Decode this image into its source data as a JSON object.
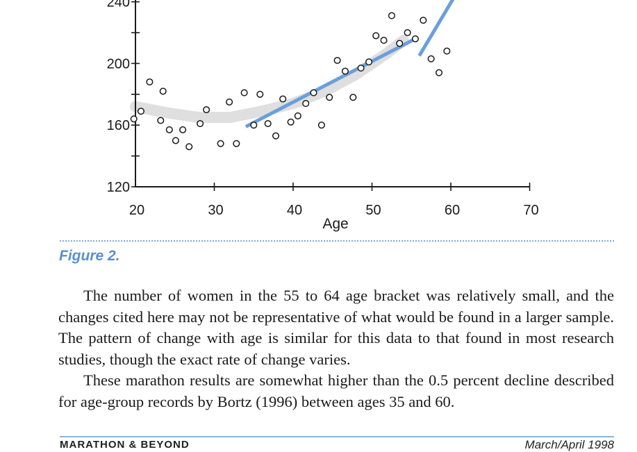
{
  "figure": {
    "caption": "Figure 2.",
    "chart_data": {
      "type": "scatter",
      "title": "",
      "xlabel": "Age",
      "ylabel": "",
      "xlim": [
        20,
        70
      ],
      "ylim": [
        120,
        245
      ],
      "x_ticks": [
        20,
        30,
        40,
        50,
        60,
        70
      ],
      "y_ticks": [
        120,
        160,
        200,
        240
      ],
      "grid": false,
      "points": [
        {
          "x": 19.8,
          "y": 164
        },
        {
          "x": 20.7,
          "y": 169
        },
        {
          "x": 21.8,
          "y": 188
        },
        {
          "x": 23.5,
          "y": 182
        },
        {
          "x": 24.3,
          "y": 157
        },
        {
          "x": 23.2,
          "y": 163
        },
        {
          "x": 25.1,
          "y": 150
        },
        {
          "x": 26.0,
          "y": 157
        },
        {
          "x": 26.8,
          "y": 146
        },
        {
          "x": 28.2,
          "y": 161
        },
        {
          "x": 29.0,
          "y": 170
        },
        {
          "x": 30.8,
          "y": 148
        },
        {
          "x": 31.9,
          "y": 175
        },
        {
          "x": 32.8,
          "y": 148
        },
        {
          "x": 33.8,
          "y": 181
        },
        {
          "x": 35.0,
          "y": 160
        },
        {
          "x": 35.8,
          "y": 180
        },
        {
          "x": 36.8,
          "y": 161
        },
        {
          "x": 37.8,
          "y": 153
        },
        {
          "x": 38.7,
          "y": 177
        },
        {
          "x": 39.7,
          "y": 162
        },
        {
          "x": 40.6,
          "y": 166
        },
        {
          "x": 41.6,
          "y": 174
        },
        {
          "x": 42.6,
          "y": 181
        },
        {
          "x": 43.6,
          "y": 160
        },
        {
          "x": 44.6,
          "y": 178
        },
        {
          "x": 45.6,
          "y": 202
        },
        {
          "x": 46.6,
          "y": 195
        },
        {
          "x": 47.6,
          "y": 178
        },
        {
          "x": 48.6,
          "y": 197
        },
        {
          "x": 49.6,
          "y": 201
        },
        {
          "x": 50.5,
          "y": 218
        },
        {
          "x": 51.5,
          "y": 215
        },
        {
          "x": 52.5,
          "y": 231
        },
        {
          "x": 53.5,
          "y": 213
        },
        {
          "x": 54.5,
          "y": 220
        },
        {
          "x": 55.5,
          "y": 216
        },
        {
          "x": 56.5,
          "y": 228
        },
        {
          "x": 57.5,
          "y": 203
        },
        {
          "x": 58.5,
          "y": 194
        },
        {
          "x": 59.5,
          "y": 208
        }
      ],
      "fit_lines": [
        {
          "x": [
            34,
            55.5
          ],
          "y": [
            159,
            216
          ]
        },
        {
          "x": [
            56,
            61
          ],
          "y": [
            205,
            248
          ]
        }
      ],
      "trend_band": {
        "x": [
          20,
          24,
          28,
          32,
          36,
          40,
          44,
          48,
          52,
          54
        ],
        "y": [
          172,
          168,
          165,
          165,
          169,
          174,
          182,
          193,
          207,
          215
        ]
      },
      "colors": {
        "axis": "#1a1a1a",
        "points": "#1a1a1a",
        "fit": "#6a9fdc",
        "band": "#d4d4d4"
      }
    }
  },
  "body": {
    "paragraphs": [
      "The number of women in the 55 to 64 age bracket was relatively small, and the changes cited here may not be representative of what would be found in a larger sample. The pattern of change with age is similar for this data to that found in most research studies, though the exact rate of change varies.",
      "These marathon results are somewhat higher than the 0.5 percent decline described for age-group records by Bortz (1996) between ages 35 and 60."
    ]
  },
  "footer": {
    "left": "MARATHON & BEYOND",
    "right": "March/April 1998"
  }
}
